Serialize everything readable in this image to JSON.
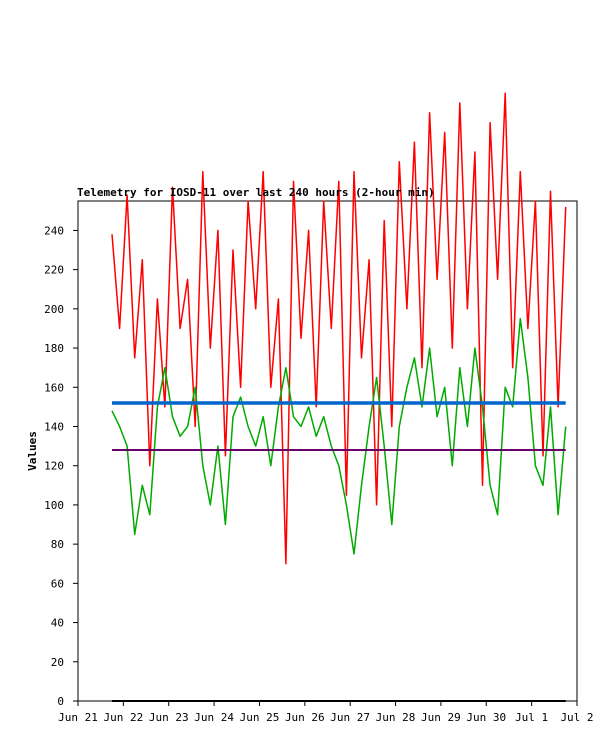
{
  "chart_data": {
    "type": "line",
    "title": "Telemetry for IOSD-11 over last 240 hours (2-hour min)",
    "xlabel": "",
    "ylabel": "Values",
    "xlim": [
      "2024-06-21",
      "2024-07-02"
    ],
    "ylim": [
      0,
      255
    ],
    "x_ticks": [
      "Jun 21",
      "Jun 22",
      "Jun 23",
      "Jun 24",
      "Jun 25",
      "Jun 26",
      "Jun 27",
      "Jun 28",
      "Jun 29",
      "Jun 30",
      "Jul 1",
      "Jul 2"
    ],
    "y_ticks": [
      0,
      20,
      40,
      60,
      80,
      100,
      120,
      140,
      160,
      180,
      200,
      220,
      240
    ],
    "grid": false,
    "legend": "none",
    "series": [
      {
        "color": "#ff0000",
        "x": [
          "2024-06-21 18:00",
          "2024-06-21 22:00",
          "2024-06-22 02:00",
          "2024-06-22 06:00",
          "2024-06-22 10:00",
          "2024-06-22 14:00",
          "2024-06-22 18:00",
          "2024-06-22 22:00",
          "2024-06-23 02:00",
          "2024-06-23 06:00",
          "2024-06-23 10:00",
          "2024-06-23 14:00",
          "2024-06-23 18:00",
          "2024-06-23 22:00",
          "2024-06-24 02:00",
          "2024-06-24 06:00",
          "2024-06-24 10:00",
          "2024-06-24 14:00",
          "2024-06-24 18:00",
          "2024-06-24 22:00",
          "2024-06-25 02:00",
          "2024-06-25 06:00",
          "2024-06-25 10:00",
          "2024-06-25 14:00",
          "2024-06-25 18:00",
          "2024-06-25 22:00",
          "2024-06-26 02:00",
          "2024-06-26 06:00",
          "2024-06-26 10:00",
          "2024-06-26 14:00",
          "2024-06-26 18:00",
          "2024-06-26 22:00",
          "2024-06-27 02:00",
          "2024-06-27 06:00",
          "2024-06-27 10:00",
          "2024-06-27 14:00",
          "2024-06-27 18:00",
          "2024-06-27 22:00",
          "2024-06-28 02:00",
          "2024-06-28 06:00",
          "2024-06-28 10:00",
          "2024-06-28 14:00",
          "2024-06-28 18:00",
          "2024-06-28 22:00",
          "2024-06-29 02:00",
          "2024-06-29 06:00",
          "2024-06-29 10:00",
          "2024-06-29 14:00",
          "2024-06-29 18:00",
          "2024-06-29 22:00",
          "2024-06-30 02:00",
          "2024-06-30 06:00",
          "2024-06-30 10:00",
          "2024-06-30 14:00",
          "2024-06-30 18:00",
          "2024-06-30 22:00",
          "2024-07-01 02:00",
          "2024-07-01 06:00",
          "2024-07-01 10:00",
          "2024-07-01 14:00",
          "2024-07-01 18:00"
        ],
        "y": [
          238,
          190,
          258,
          175,
          225,
          120,
          205,
          150,
          262,
          190,
          215,
          140,
          270,
          180,
          240,
          125,
          230,
          160,
          255,
          200,
          270,
          160,
          205,
          70,
          265,
          185,
          240,
          150,
          255,
          190,
          265,
          105,
          270,
          175,
          225,
          100,
          245,
          140,
          275,
          200,
          285,
          170,
          300,
          215,
          290,
          180,
          305,
          200,
          280,
          110,
          295,
          215,
          310,
          170,
          270,
          190,
          255,
          125,
          260,
          150,
          252
        ]
      },
      {
        "color": "#00aa00",
        "x": [
          "2024-06-21 18:00",
          "2024-06-21 22:00",
          "2024-06-22 02:00",
          "2024-06-22 06:00",
          "2024-06-22 10:00",
          "2024-06-22 14:00",
          "2024-06-22 18:00",
          "2024-06-22 22:00",
          "2024-06-23 02:00",
          "2024-06-23 06:00",
          "2024-06-23 10:00",
          "2024-06-23 14:00",
          "2024-06-23 18:00",
          "2024-06-23 22:00",
          "2024-06-24 02:00",
          "2024-06-24 06:00",
          "2024-06-24 10:00",
          "2024-06-24 14:00",
          "2024-06-24 18:00",
          "2024-06-24 22:00",
          "2024-06-25 02:00",
          "2024-06-25 06:00",
          "2024-06-25 10:00",
          "2024-06-25 14:00",
          "2024-06-25 18:00",
          "2024-06-25 22:00",
          "2024-06-26 02:00",
          "2024-06-26 06:00",
          "2024-06-26 10:00",
          "2024-06-26 14:00",
          "2024-06-26 18:00",
          "2024-06-26 22:00",
          "2024-06-27 02:00",
          "2024-06-27 06:00",
          "2024-06-27 10:00",
          "2024-06-27 14:00",
          "2024-06-27 18:00",
          "2024-06-27 22:00",
          "2024-06-28 02:00",
          "2024-06-28 06:00",
          "2024-06-28 10:00",
          "2024-06-28 14:00",
          "2024-06-28 18:00",
          "2024-06-28 22:00",
          "2024-06-29 02:00",
          "2024-06-29 06:00",
          "2024-06-29 10:00",
          "2024-06-29 14:00",
          "2024-06-29 18:00",
          "2024-06-29 22:00",
          "2024-06-30 02:00",
          "2024-06-30 06:00",
          "2024-06-30 10:00",
          "2024-06-30 14:00",
          "2024-06-30 18:00",
          "2024-06-30 22:00",
          "2024-07-01 02:00",
          "2024-07-01 06:00",
          "2024-07-01 10:00",
          "2024-07-01 14:00",
          "2024-07-01 18:00"
        ],
        "y": [
          148,
          140,
          130,
          85,
          110,
          95,
          150,
          170,
          145,
          135,
          140,
          160,
          120,
          100,
          130,
          90,
          145,
          155,
          140,
          130,
          145,
          120,
          150,
          170,
          145,
          140,
          150,
          135,
          145,
          130,
          120,
          100,
          75,
          110,
          140,
          165,
          130,
          90,
          140,
          160,
          175,
          150,
          180,
          145,
          160,
          120,
          170,
          140,
          180,
          150,
          110,
          95,
          160,
          150,
          195,
          165,
          120,
          110,
          150,
          95,
          140
        ]
      },
      {
        "color": "#0066cc",
        "x": [
          "2024-06-21 18:00",
          "2024-07-01 18:00"
        ],
        "y": [
          152,
          152
        ]
      },
      {
        "color": "#660066",
        "x": [
          "2024-06-21 18:00",
          "2024-07-01 18:00"
        ],
        "y": [
          128,
          128
        ]
      },
      {
        "color": "#000000",
        "x": [
          "2024-06-21 18:00",
          "2024-07-01 18:00"
        ],
        "y": [
          0,
          0
        ]
      }
    ]
  }
}
